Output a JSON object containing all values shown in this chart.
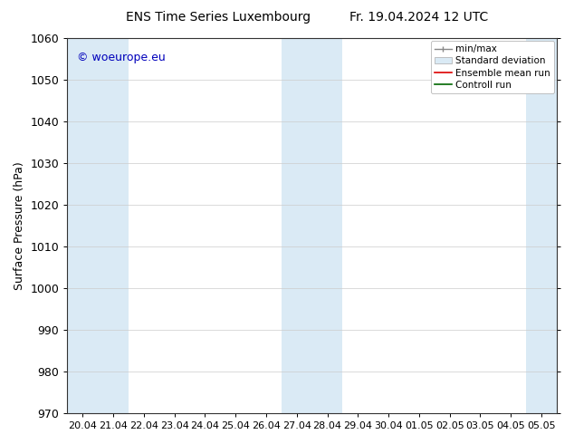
{
  "title_left": "ENS Time Series Luxembourg",
  "title_right": "Fr. 19.04.2024 12 UTC",
  "ylabel": "Surface Pressure (hPa)",
  "ylim": [
    970,
    1060
  ],
  "yticks": [
    970,
    980,
    990,
    1000,
    1010,
    1020,
    1030,
    1040,
    1050,
    1060
  ],
  "xtick_labels": [
    "20.04",
    "21.04",
    "22.04",
    "23.04",
    "24.04",
    "25.04",
    "26.04",
    "27.04",
    "28.04",
    "29.04",
    "30.04",
    "01.05",
    "02.05",
    "03.05",
    "04.05",
    "05.05"
  ],
  "shaded_bands_idx": [
    0,
    1,
    7,
    8,
    15
  ],
  "shade_color": "#daeaf5",
  "copyright_text": "© woeurope.eu",
  "copyright_color": "#0000bb",
  "background_color": "#ffffff",
  "legend_items": [
    {
      "label": "min/max",
      "color": "#aaaaaa",
      "type": "errbar"
    },
    {
      "label": "Standard deviation",
      "color": "#daeaf5",
      "type": "fillbetween"
    },
    {
      "label": "Ensemble mean run",
      "color": "#dd0000",
      "type": "line"
    },
    {
      "label": "Controll run",
      "color": "#006600",
      "type": "line"
    }
  ],
  "font_size": 9,
  "title_font_size": 10,
  "ylabel_fontsize": 9
}
